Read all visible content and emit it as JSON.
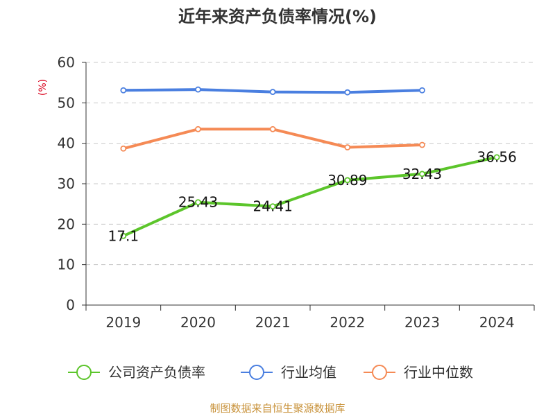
{
  "chart_data": {
    "type": "line",
    "title": "近年来资产负债率情况(%)",
    "ylabel": "(%)",
    "categories": [
      "2019",
      "2020",
      "2021",
      "2022",
      "2023",
      "2024"
    ],
    "ylim": [
      0,
      60
    ],
    "yticks": [
      "0",
      "10",
      "20",
      "30",
      "40",
      "50",
      "60"
    ],
    "grid": "horizontal-dashed",
    "legend_placement": "bottom",
    "series": [
      {
        "name": "公司资产负债率",
        "color": "#5cc52b",
        "values": [
          17.1,
          25.43,
          24.41,
          30.89,
          32.43,
          36.56
        ],
        "labels": [
          "17.1",
          "25.43",
          "24.41",
          "30.89",
          "32.43",
          "36.56"
        ]
      },
      {
        "name": "行业均值",
        "color": "#4a7fe0",
        "values": [
          53.1,
          53.3,
          52.7,
          52.6,
          53.1,
          null
        ]
      },
      {
        "name": "行业中位数",
        "color": "#f58a55",
        "values": [
          38.7,
          43.5,
          43.5,
          39.0,
          39.6,
          null
        ]
      }
    ]
  },
  "source_note": "制图数据来自恒生聚源数据库"
}
